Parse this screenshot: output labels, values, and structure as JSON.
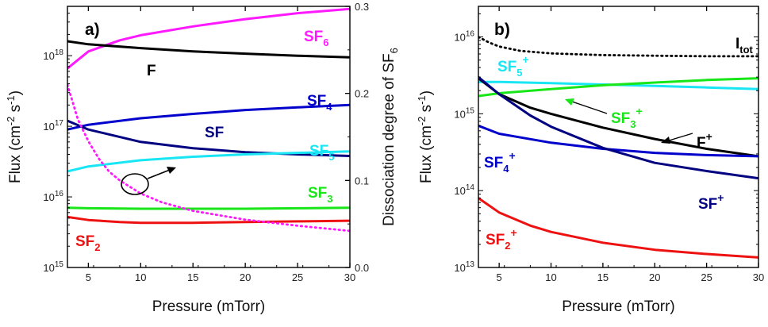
{
  "chart_data": [
    {
      "panel": "a)",
      "type": "line",
      "xlabel": "Pressure (mTorr)",
      "ylabel_parts": [
        "Flux (cm",
        "-2",
        " s",
        "-1",
        ")"
      ],
      "y2label_parts": [
        "Dissociation degree of SF",
        "6"
      ],
      "xlim": [
        3,
        30
      ],
      "ylim": [
        1000000000000000.0,
        5e+18
      ],
      "yscale": "log",
      "y2lim": [
        0.0,
        0.3
      ],
      "xticks": [
        "5",
        "10",
        "15",
        "20",
        "25",
        "30"
      ],
      "yticks": [
        {
          "base": "10",
          "exp": "15"
        },
        {
          "base": "10",
          "exp": "16"
        },
        {
          "base": "10",
          "exp": "17"
        },
        {
          "base": "10",
          "exp": "18"
        }
      ],
      "y2ticks": [
        "0.0",
        "0.1",
        "0.2",
        "0.3"
      ],
      "grid": false,
      "series": [
        {
          "name_parts": [
            "SF",
            "6",
            ""
          ],
          "color": "#ff19ff",
          "dash": "solid",
          "x": [
            3,
            5,
            8,
            10,
            15,
            20,
            25,
            30
          ],
          "y": [
            6.6e+17,
            1.15e+18,
            1.65e+18,
            1.95e+18,
            2.6e+18,
            3.3e+18,
            4e+18,
            4.6e+18
          ]
        },
        {
          "name_parts": [
            "F",
            "",
            ""
          ],
          "color": "#000000",
          "dash": "solid",
          "x": [
            3,
            5,
            10,
            15,
            20,
            25,
            30
          ],
          "y": [
            1.6e+18,
            1.45e+18,
            1.28e+18,
            1.15e+18,
            1.07e+18,
            1e+18,
            9.5e+17
          ]
        },
        {
          "name_parts": [
            "SF",
            "4",
            ""
          ],
          "color": "#0000cc",
          "dash": "solid",
          "x": [
            3,
            5,
            10,
            15,
            20,
            25,
            30
          ],
          "y": [
            9e+16,
            1.05e+17,
            1.3e+17,
            1.5e+17,
            1.7e+17,
            1.85e+17,
            2e+17
          ]
        },
        {
          "name_parts": [
            "SF",
            "",
            ""
          ],
          "color": "#000080",
          "dash": "solid",
          "x": [
            3,
            5,
            10,
            15,
            20,
            25,
            30
          ],
          "y": [
            1.2e+17,
            9e+16,
            6e+16,
            4.9e+16,
            4.3e+16,
            4e+16,
            3.8e+16
          ]
        },
        {
          "name_parts": [
            "SF",
            "5",
            ""
          ],
          "color": "#19e6f5",
          "dash": "solid",
          "x": [
            3,
            5,
            10,
            15,
            20,
            25,
            30
          ],
          "y": [
            2.3e+16,
            2.7e+16,
            3.3e+16,
            3.7e+16,
            4e+16,
            4.2e+16,
            4.4e+16
          ]
        },
        {
          "name_parts": [
            "SF",
            "3",
            ""
          ],
          "color": "#19e619",
          "dash": "solid",
          "x": [
            3,
            5,
            10,
            15,
            20,
            25,
            30
          ],
          "y": [
            7000000000000000.0,
            6900000000000000.0,
            6800000000000000.0,
            6800000000000000.0,
            6800000000000000.0,
            6900000000000000.0,
            7000000000000000.0
          ]
        },
        {
          "name_parts": [
            "SF",
            "2",
            ""
          ],
          "color": "#ee1111",
          "dash": "solid",
          "x": [
            3,
            5,
            8,
            10,
            15,
            20,
            25,
            30
          ],
          "y": [
            5200000000000000.0,
            4700000000000000.0,
            4400000000000000.0,
            4300000000000000.0,
            4300000000000000.0,
            4400000000000000.0,
            4500000000000000.0,
            4600000000000000.0
          ]
        },
        {
          "name_parts": [
            "",
            "",
            ""
          ],
          "color": "#ff19ff",
          "dash": "dotted",
          "axis": "right",
          "x": [
            3,
            4,
            5,
            6,
            7,
            8,
            10,
            12,
            15,
            20,
            25,
            30
          ],
          "y": [
            0.21,
            0.17,
            0.145,
            0.125,
            0.11,
            0.1,
            0.085,
            0.075,
            0.065,
            0.055,
            0.048,
            0.042
          ]
        }
      ],
      "annotation": "circle with arrow pointing right (dotted curve uses right axis)"
    },
    {
      "panel": "b)",
      "type": "line",
      "xlabel": "Pressure (mTorr)",
      "ylabel_parts": [
        "Flux (cm",
        "-2",
        " s",
        "-1",
        ")"
      ],
      "xlim": [
        3,
        30
      ],
      "ylim": [
        10000000000000.0,
        2.5e+16
      ],
      "yscale": "log",
      "xticks": [
        "5",
        "10",
        "15",
        "20",
        "25",
        "30"
      ],
      "yticks": [
        {
          "base": "10",
          "exp": "13"
        },
        {
          "base": "10",
          "exp": "14"
        },
        {
          "base": "10",
          "exp": "15"
        },
        {
          "base": "10",
          "exp": "16"
        }
      ],
      "grid": false,
      "series": [
        {
          "name_parts": [
            "I",
            "",
            "tot"
          ],
          "color": "#000000",
          "dash": "dotted",
          "x": [
            3,
            4,
            5,
            7,
            10,
            15,
            20,
            25,
            30
          ],
          "y": [
            1e+16,
            8500000000000000.0,
            7500000000000000.0,
            6600000000000000.0,
            6100000000000000.0,
            5800000000000000.0,
            5700000000000000.0,
            5600000000000000.0,
            5600000000000000.0
          ]
        },
        {
          "name_parts": [
            "SF",
            "",
            "5"
          ],
          "sup": "+",
          "color": "#19e6f5",
          "dash": "solid",
          "x": [
            3,
            5,
            10,
            15,
            20,
            25,
            30
          ],
          "y": [
            2600000000000000.0,
            2600000000000000.0,
            2500000000000000.0,
            2400000000000000.0,
            2300000000000000.0,
            2200000000000000.0,
            2100000000000000.0
          ]
        },
        {
          "name_parts": [
            "SF",
            "",
            "3"
          ],
          "sup": "+",
          "color": "#19e619",
          "dash": "solid",
          "x": [
            3,
            5,
            10,
            15,
            20,
            25,
            30
          ],
          "y": [
            1700000000000000.0,
            1850000000000000.0,
            2100000000000000.0,
            2350000000000000.0,
            2550000000000000.0,
            2750000000000000.0,
            2900000000000000.0
          ]
        },
        {
          "name_parts": [
            "F",
            "",
            ""
          ],
          "sup": "+",
          "color": "#000000",
          "dash": "solid",
          "x": [
            3,
            5,
            8,
            10,
            15,
            20,
            25,
            30
          ],
          "y": [
            2900000000000000.0,
            1800000000000000.0,
            1200000000000000.0,
            1000000000000000.0,
            660000000000000.0,
            470000000000000.0,
            350000000000000.0,
            280000000000000.0
          ]
        },
        {
          "name_parts": [
            "SF",
            "",
            "4"
          ],
          "sup": "+",
          "color": "#0000cc",
          "dash": "solid",
          "x": [
            3,
            5,
            10,
            15,
            20,
            25,
            30
          ],
          "y": [
            700000000000000.0,
            550000000000000.0,
            420000000000000.0,
            350000000000000.0,
            310000000000000.0,
            290000000000000.0,
            280000000000000.0
          ]
        },
        {
          "name_parts": [
            "SF",
            "",
            ""
          ],
          "sup": "+",
          "color": "#000080",
          "dash": "solid",
          "x": [
            3,
            5,
            8,
            10,
            15,
            20,
            25,
            30
          ],
          "y": [
            3000000000000000.0,
            1800000000000000.0,
            950000000000000.0,
            680000000000000.0,
            360000000000000.0,
            230000000000000.0,
            180000000000000.0,
            145000000000000.0
          ]
        },
        {
          "name_parts": [
            "SF",
            "",
            "2"
          ],
          "sup": "+",
          "color": "#ee1111",
          "dash": "solid",
          "x": [
            3,
            5,
            8,
            10,
            15,
            20,
            25,
            30
          ],
          "y": [
            80000000000000.0,
            52000000000000.0,
            35000000000000.0,
            29000000000000.0,
            21000000000000.0,
            17000000000000.0,
            15000000000000.0,
            13500000000000.0
          ]
        }
      ]
    }
  ]
}
